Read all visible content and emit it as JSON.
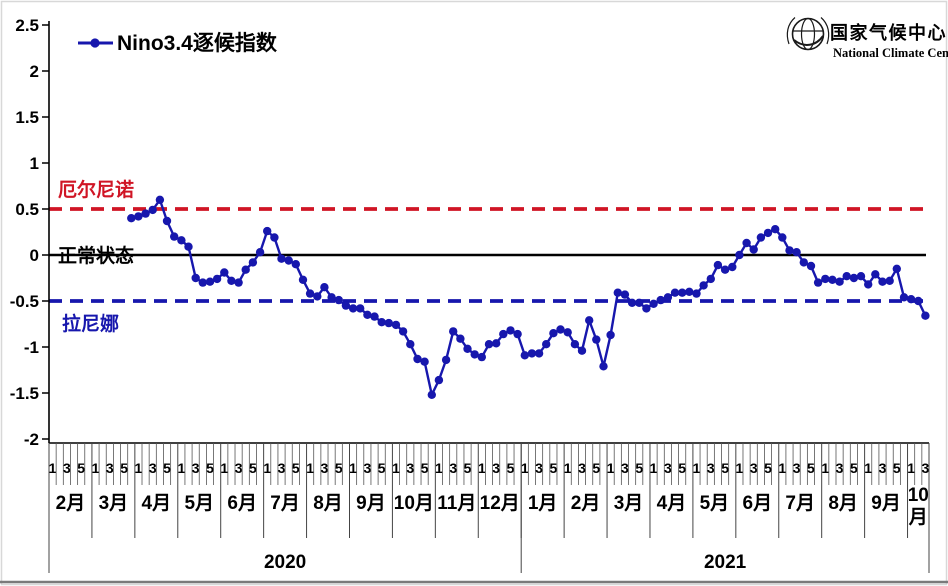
{
  "logo": {
    "cn": "国家气候中心",
    "en": "National Climate Center"
  },
  "colors": {
    "series": "#1717ad",
    "el_nino_line": "#d01525",
    "normal_line": "#000000",
    "la_nina_line": "#1717ad"
  },
  "chart_data": {
    "type": "line",
    "series_name": "Nino3.4逐候指数",
    "ylim": [
      -2,
      2.5
    ],
    "y_ticks": [
      "2.5",
      "2",
      "1.5",
      "1",
      "0.5",
      "0",
      "-0.5",
      "-1",
      "-1.5",
      "-2"
    ],
    "grid": "off",
    "legend_position": "top-left-inside",
    "reference_lines": [
      {
        "value": 0.5,
        "label": "厄尔尼诺",
        "color": "#d01525",
        "style": "dashed"
      },
      {
        "value": 0,
        "label": "正常状态",
        "color": "#000000",
        "style": "solid"
      },
      {
        "value": -0.5,
        "label": "拉尼娜",
        "color": "#1717ad",
        "style": "dashed"
      }
    ],
    "pentad_labels": [
      "1",
      "3",
      "5"
    ],
    "years": [
      {
        "label": "2020",
        "months": [
          {
            "label": "2月",
            "pentads": 6
          },
          {
            "label": "3月",
            "pentads": 6
          },
          {
            "label": "4月",
            "pentads": 6
          },
          {
            "label": "5月",
            "pentads": 6
          },
          {
            "label": "6月",
            "pentads": 6
          },
          {
            "label": "7月",
            "pentads": 6
          },
          {
            "label": "8月",
            "pentads": 6
          },
          {
            "label": "9月",
            "pentads": 6
          },
          {
            "label": "10月",
            "pentads": 6
          },
          {
            "label": "11月",
            "pentads": 6
          },
          {
            "label": "12月",
            "pentads": 6
          }
        ]
      },
      {
        "label": "2021",
        "months": [
          {
            "label": "1月",
            "pentads": 6
          },
          {
            "label": "2月",
            "pentads": 6
          },
          {
            "label": "3月",
            "pentads": 6
          },
          {
            "label": "4月",
            "pentads": 6
          },
          {
            "label": "5月",
            "pentads": 6
          },
          {
            "label": "6月",
            "pentads": 6
          },
          {
            "label": "7月",
            "pentads": 6
          },
          {
            "label": "8月",
            "pentads": 6
          },
          {
            "label": "9月",
            "pentads": 6
          },
          {
            "label": "10月",
            "pentads": 3,
            "wrap": true
          }
        ]
      }
    ],
    "start_pentad_index": 11,
    "values": [
      0.4,
      0.42,
      0.45,
      0.49,
      0.6,
      0.37,
      0.2,
      0.16,
      0.09,
      -0.25,
      -0.3,
      -0.29,
      -0.26,
      -0.19,
      -0.28,
      -0.3,
      -0.16,
      -0.08,
      0.03,
      0.26,
      0.19,
      -0.04,
      -0.06,
      -0.1,
      -0.27,
      -0.42,
      -0.45,
      -0.35,
      -0.46,
      -0.49,
      -0.55,
      -0.58,
      -0.58,
      -0.65,
      -0.67,
      -0.73,
      -0.74,
      -0.76,
      -0.83,
      -0.97,
      -1.13,
      -1.16,
      -1.52,
      -1.36,
      -1.14,
      -0.83,
      -0.91,
      -1.02,
      -1.08,
      -1.11,
      -0.97,
      -0.96,
      -0.86,
      -0.82,
      -0.86,
      -1.09,
      -1.07,
      -1.07,
      -0.97,
      -0.85,
      -0.81,
      -0.84,
      -0.97,
      -1.04,
      -0.71,
      -0.92,
      -1.21,
      -0.87,
      -0.41,
      -0.43,
      -0.52,
      -0.52,
      -0.58,
      -0.53,
      -0.49,
      -0.46,
      -0.41,
      -0.41,
      -0.4,
      -0.42,
      -0.33,
      -0.26,
      -0.11,
      -0.16,
      -0.13,
      0.0,
      0.13,
      0.06,
      0.19,
      0.24,
      0.28,
      0.19,
      0.05,
      0.03,
      -0.08,
      -0.12,
      -0.3,
      -0.26,
      -0.27,
      -0.29,
      -0.23,
      -0.25,
      -0.23,
      -0.32,
      -0.21,
      -0.29,
      -0.28,
      -0.15,
      -0.46,
      -0.48,
      -0.5,
      -0.66
    ]
  }
}
